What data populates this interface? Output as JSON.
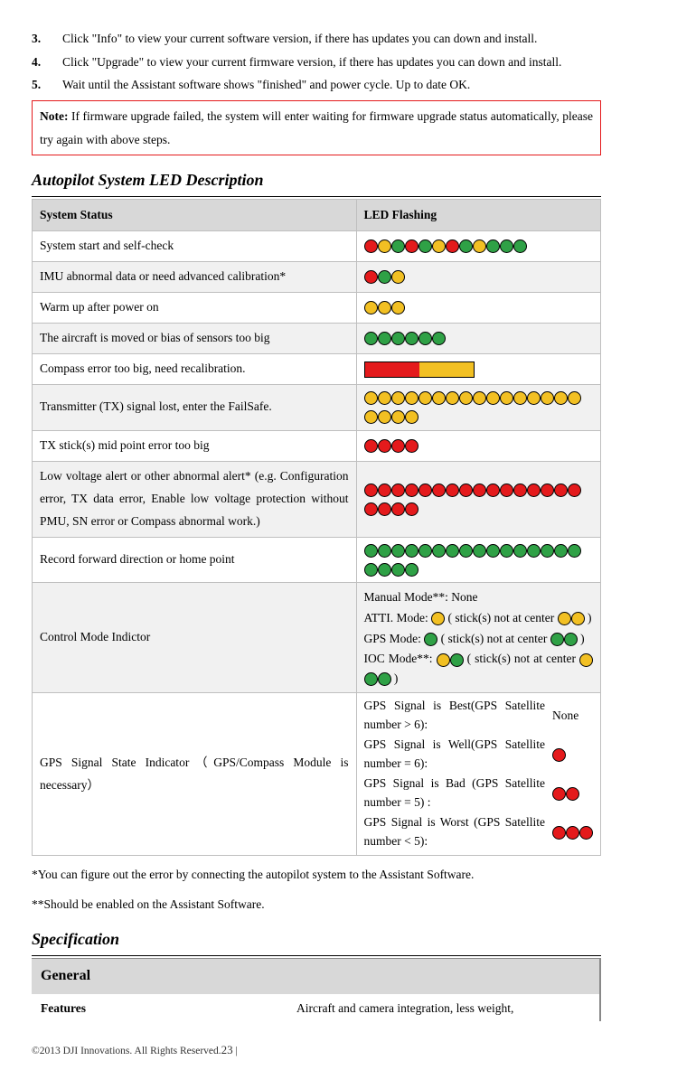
{
  "colors": {
    "red": "#e41a1c",
    "yellow": "#f2c023",
    "green": "#2fa146",
    "gray_header": "#d8d8d8",
    "row_alt": "#f1f1f1",
    "border": "#bfbfbf"
  },
  "dot_radius": 7,
  "steps": {
    "s3": {
      "num": "3.",
      "text": "Click \"Info\" to view your current software version, if there has updates you can down and install."
    },
    "s4": {
      "num": "4.",
      "text": "Click \"Upgrade\" to view your current firmware version, if there has updates you can down and install."
    },
    "s5": {
      "num": "5.",
      "text": "Wait until the Assistant software shows \"finished\" and power cycle. Up to date OK."
    }
  },
  "note": {
    "label": "Note:",
    "text": " If firmware upgrade failed, the system will enter waiting for firmware upgrade status automatically, please try again with above steps."
  },
  "heading_led": "Autopilot System LED Description",
  "led_header": {
    "status": "System Status",
    "flash": "LED Flashing"
  },
  "led_rows": {
    "r1": {
      "status": "System start and self-check",
      "pattern": "RYGRGYRGYGGG"
    },
    "r2": {
      "status": "IMU abnormal data or need advanced calibration*",
      "pattern": "RGY"
    },
    "r3": {
      "status": "Warm up after power on",
      "pattern": "YYY"
    },
    "r4": {
      "status": "The aircraft is moved or bias of sensors too big",
      "pattern": "GGGGGG"
    },
    "r5": {
      "status": "Compass error too big, need recalibration."
    },
    "r6": {
      "status": "Transmitter (TX) signal lost, enter the FailSafe.",
      "pattern": "YYYYYYYYYYYYYYYYYYYY"
    },
    "r7": {
      "status": "TX stick(s) mid point error too big",
      "pattern": "RRRR"
    },
    "r8": {
      "status": "Low voltage alert or other abnormal alert*  (e.g. Configuration error, TX data error, Enable low voltage protection without PMU, SN error or Compass abnormal work.)",
      "pattern": "RRRRRRRRRRRRRRRRRRRR"
    },
    "r9": {
      "status": "Record forward direction or home point",
      "pattern": "GGGGGGGGGGGGGGGGGGGG"
    },
    "r10": {
      "status": "Control Mode Indictor",
      "mode_manual": "Manual Mode**: None",
      "mode_atti_a": "ATTI. Mode: ",
      "mode_atti_b": " ( stick(s) not at center ",
      "mode_atti_c": " )",
      "mode_gps_a": "GPS Mode: ",
      "mode_gps_b": " ( stick(s) not at center ",
      "mode_gps_c": " )",
      "mode_ioc_a": "IOC Mode**: ",
      "mode_ioc_b": " ( stick(s) not at center ",
      "mode_ioc_c": " )"
    },
    "r11": {
      "status": "GPS Signal State Indicator（GPS/Compass Module is necessary）",
      "g1": "GPS Signal is Best(GPS Satellite number > 6):",
      "g1v": "None",
      "g2": "GPS Signal is Well(GPS Satellite number = 6):",
      "g3": "GPS Signal is Bad (GPS Satellite number = 5) :",
      "g4": "GPS Signal is Worst (GPS Satellite number < 5):"
    }
  },
  "footnote1": "*You can figure out the error by connecting the autopilot system to the Assistant Software.",
  "footnote2": "**Should be enabled on the Assistant Software.",
  "heading_spec": "Specification",
  "spec": {
    "section": "General",
    "row1_label": "Features",
    "row1_val": "Aircraft and camera integration, less weight,"
  },
  "footer": {
    "copyright": "©2013 DJI Innovations. All Rights Reserved.",
    "page": "23",
    "pipe": " |"
  }
}
